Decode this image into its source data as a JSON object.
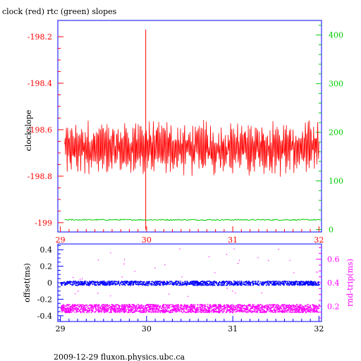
{
  "title": "clock (red) rtc (green) slopes",
  "footer": "2009-12-29 fluxon.physics.ubc.ca",
  "colors": {
    "clock": "#ff0000",
    "rtc": "#00cc00",
    "offset": "#0000ff",
    "rndtrip": "#ff00ff",
    "frame": "#0000ff",
    "text": "#000000"
  },
  "chart_data": [
    {
      "type": "line",
      "title": "clock (red) rtc (green) slopes",
      "xlabel": "",
      "ylabel": "clockslope",
      "xlim": [
        28.97,
        32.03
      ],
      "x_ticks": [
        29,
        30,
        31,
        32
      ],
      "x_tick_labels": [
        "29",
        "30",
        "31",
        "32"
      ],
      "left_axis": {
        "ylim": [
          -199.04,
          -198.13
        ],
        "ticks": [
          -198.2,
          -198.4,
          -198.6,
          -198.8,
          -199
        ],
        "tick_labels": [
          "-198.2",
          "-198.4",
          "-198.6",
          "-198.8",
          "-199"
        ],
        "color": "#ff0000"
      },
      "right_axis": {
        "ylim": [
          -5,
          430
        ],
        "ticks": [
          0,
          100,
          200,
          300,
          400
        ],
        "tick_labels": [
          "0",
          "100",
          "200",
          "300",
          "400"
        ],
        "color": "#00cc00"
      },
      "series": [
        {
          "name": "clock",
          "axis": "left",
          "color": "#ff0000",
          "x_range": [
            29.05,
            32.0
          ],
          "typical_range": [
            -198.8,
            -198.55
          ],
          "mean": -198.68,
          "spike": {
            "x": 29.99,
            "y": -198.17
          },
          "dip": {
            "x": 29.99,
            "y": -199.03
          }
        },
        {
          "name": "rtc",
          "axis": "right",
          "color": "#00cc00",
          "x_range": [
            29.05,
            32.0
          ],
          "mean": 20
        }
      ]
    },
    {
      "type": "scatter",
      "xlabel": "",
      "ylabel": "offset(ms)",
      "xlim": [
        28.97,
        32.03
      ],
      "x_ticks": [
        29,
        30,
        31,
        32
      ],
      "x_tick_labels": [
        "29",
        "30",
        "31",
        "32"
      ],
      "left_axis": {
        "ylim": [
          -0.47,
          0.47
        ],
        "ticks": [
          0.4,
          0.2,
          0,
          -0.2,
          -0.4
        ],
        "tick_labels": [
          "0.4",
          "0.2",
          "0",
          "-0.2",
          "-0.4"
        ],
        "color": "#0000ff"
      },
      "right_axis": {
        "label": "rnd-trip(ms)",
        "ylim": [
          0.07,
          0.73
        ],
        "ticks": [
          0.6,
          0.4,
          0.2
        ],
        "tick_labels": [
          "0.6",
          "0.4",
          "0.2"
        ],
        "color": "#ff00ff"
      },
      "series": [
        {
          "name": "offset",
          "axis": "left",
          "color": "#0000ff",
          "band": [
            -0.02,
            0.02
          ]
        },
        {
          "name": "rnd-trip",
          "axis": "right",
          "color": "#ff00ff",
          "band": [
            0.15,
            0.22
          ]
        }
      ]
    }
  ]
}
